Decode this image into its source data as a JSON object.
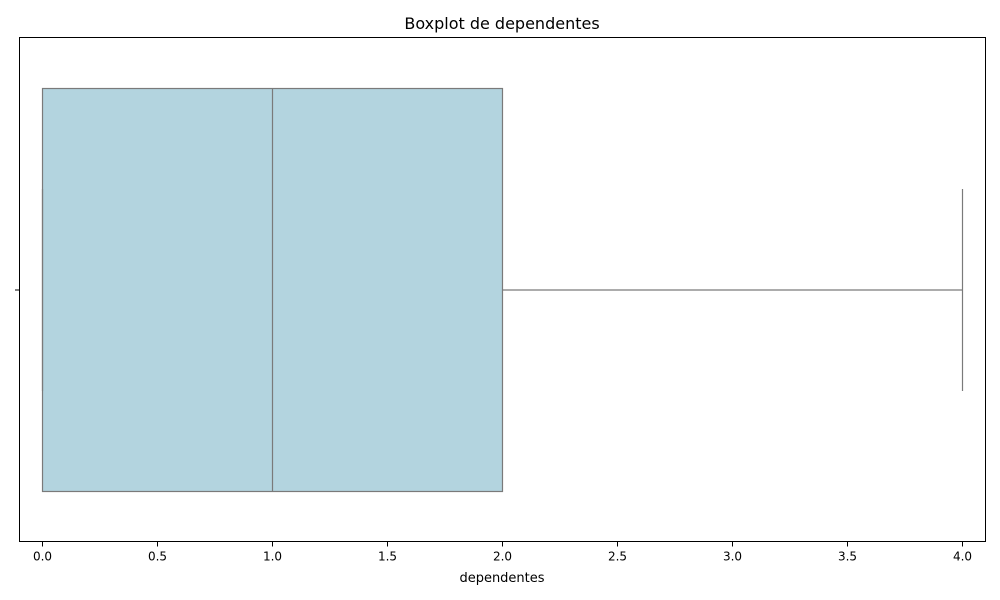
{
  "chart_data": {
    "type": "boxplot",
    "title": "Boxplot de dependentes",
    "xlabel": "dependentes",
    "ylabel": "",
    "xlim": [
      -0.1,
      4.1
    ],
    "xticks": [
      0.0,
      0.5,
      1.0,
      1.5,
      2.0,
      2.5,
      3.0,
      3.5,
      4.0
    ],
    "xtick_labels": [
      "0.0",
      "0.5",
      "1.0",
      "1.5",
      "2.0",
      "2.5",
      "3.0",
      "3.5",
      "4.0"
    ],
    "orientation": "horizontal",
    "box": {
      "whisker_low": 0,
      "q1": 0,
      "median": 1,
      "q3": 2,
      "whisker_high": 4
    },
    "grid": false,
    "colors": {
      "box_fill": "#b3d4df",
      "line": "#7a7a7a",
      "axes": "#000000"
    }
  }
}
